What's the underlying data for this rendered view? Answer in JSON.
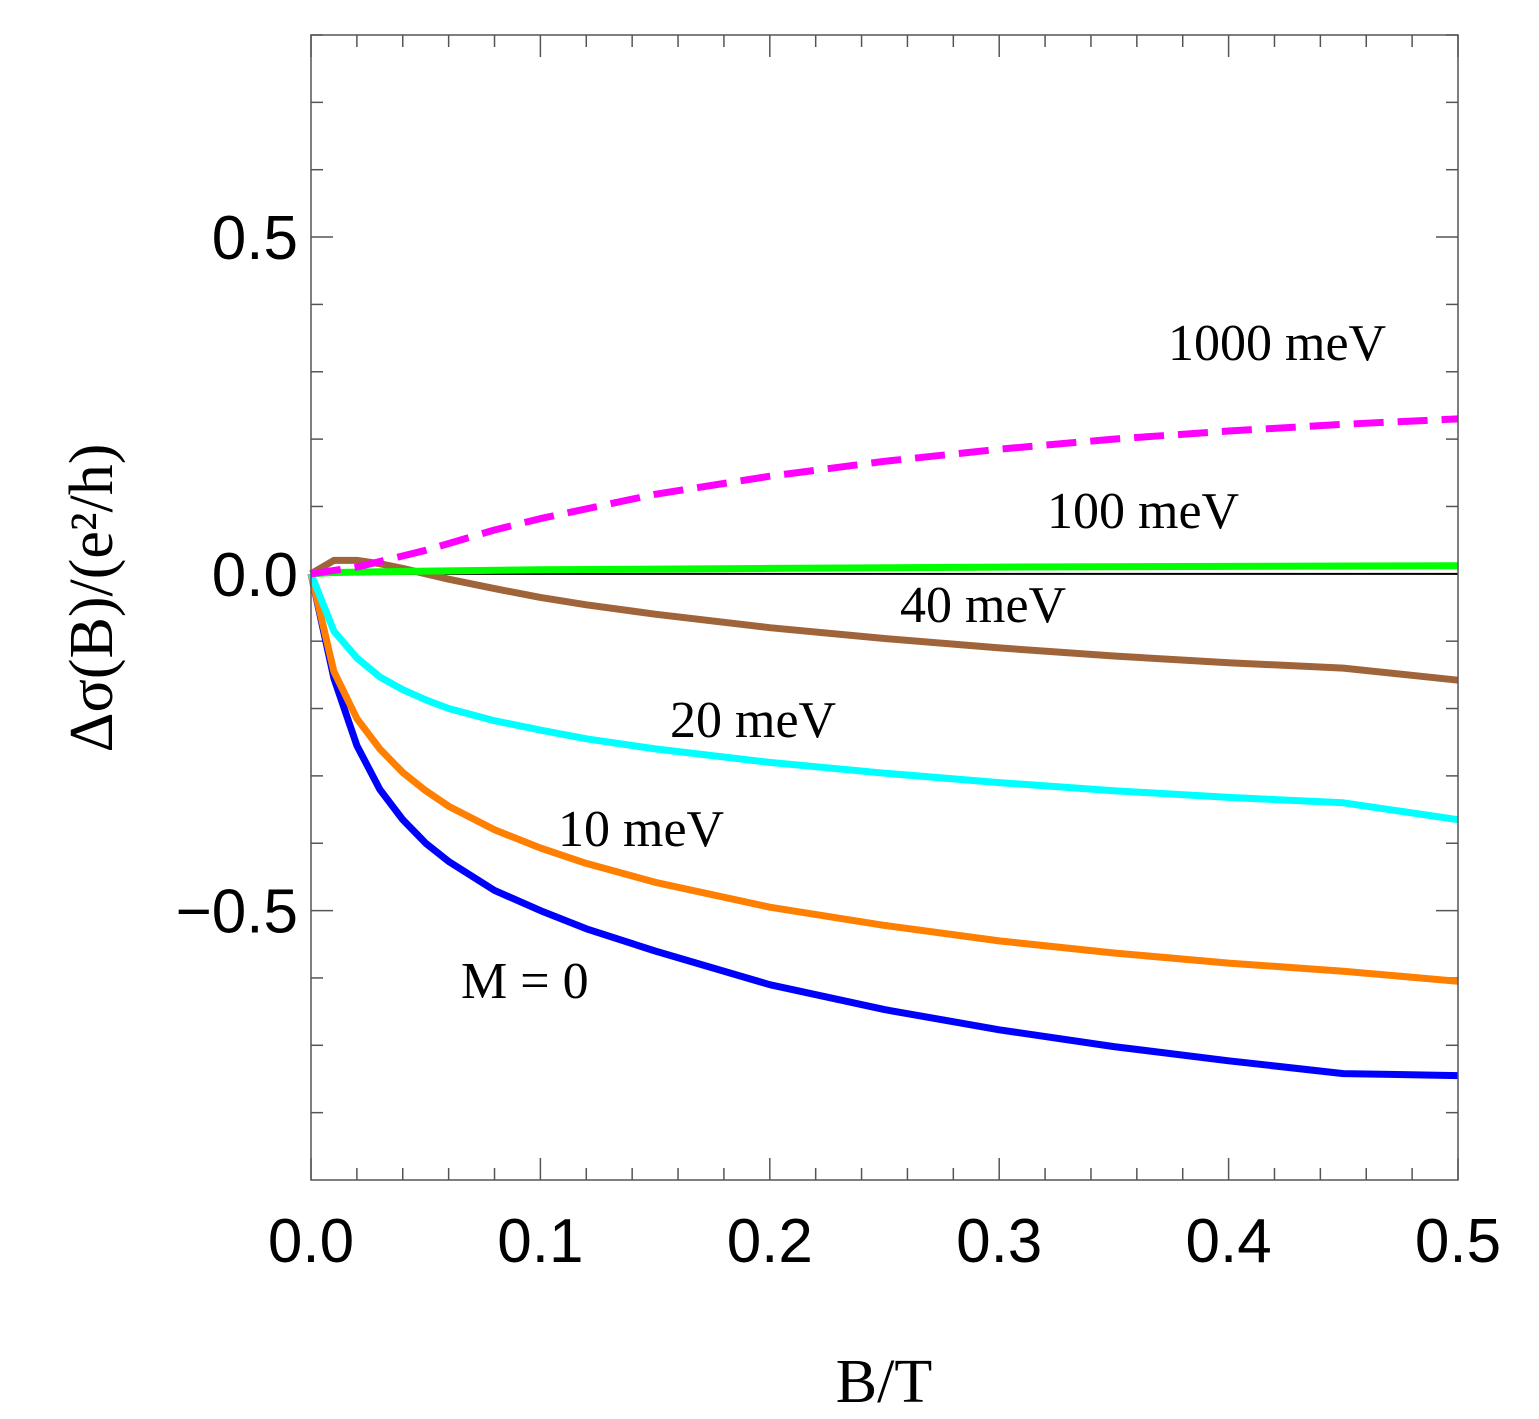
{
  "chart_data": {
    "type": "line",
    "title": "",
    "xlabel": "B/T",
    "ylabel": "Δσ(B)/(e²/h)",
    "xlim": [
      0,
      0.5
    ],
    "ylim": [
      -0.9,
      0.8
    ],
    "x_ticks": [
      "0.0",
      "0.1",
      "0.2",
      "0.3",
      "0.4",
      "0.5"
    ],
    "y_ticks": [
      "-0.5",
      "0.0",
      "0.5"
    ],
    "x_tick_values": [
      0,
      0.1,
      0.2,
      0.3,
      0.4,
      0.5
    ],
    "y_tick_values": [
      -0.5,
      0,
      0.5
    ],
    "baseline": 0,
    "series": [
      {
        "name": "M = 0",
        "label": "M = 0",
        "color": "#0000ff",
        "dash": false,
        "x": [
          0,
          0.01,
          0.02,
          0.03,
          0.04,
          0.05,
          0.06,
          0.08,
          0.1,
          0.12,
          0.15,
          0.2,
          0.25,
          0.3,
          0.35,
          0.4,
          0.45,
          0.5
        ],
        "y": [
          0,
          -0.155,
          -0.255,
          -0.32,
          -0.365,
          -0.4,
          -0.427,
          -0.47,
          -0.5,
          -0.527,
          -0.56,
          -0.61,
          -0.647,
          -0.677,
          -0.702,
          -0.723,
          -0.742,
          -0.745
        ]
      },
      {
        "name": "10 meV",
        "label": "10 meV",
        "color": "#ff7f00",
        "dash": false,
        "x": [
          0,
          0.01,
          0.02,
          0.03,
          0.04,
          0.05,
          0.06,
          0.08,
          0.1,
          0.12,
          0.15,
          0.2,
          0.25,
          0.3,
          0.35,
          0.4,
          0.45,
          0.5
        ],
        "y": [
          0,
          -0.145,
          -0.215,
          -0.26,
          -0.295,
          -0.322,
          -0.345,
          -0.38,
          -0.407,
          -0.43,
          -0.458,
          -0.495,
          -0.522,
          -0.545,
          -0.563,
          -0.578,
          -0.59,
          -0.605
        ]
      },
      {
        "name": "20 meV",
        "label": "20 meV",
        "color": "#00ffff",
        "dash": false,
        "x": [
          0,
          0.01,
          0.02,
          0.03,
          0.04,
          0.05,
          0.06,
          0.08,
          0.1,
          0.12,
          0.15,
          0.2,
          0.25,
          0.3,
          0.35,
          0.4,
          0.45,
          0.5
        ],
        "y": [
          0,
          -0.085,
          -0.125,
          -0.153,
          -0.172,
          -0.187,
          -0.2,
          -0.218,
          -0.232,
          -0.245,
          -0.26,
          -0.28,
          -0.296,
          -0.31,
          -0.322,
          -0.332,
          -0.34,
          -0.365
        ]
      },
      {
        "name": "40 meV",
        "label": "40 meV",
        "color": "#a0643a",
        "dash": false,
        "x": [
          0,
          0.01,
          0.02,
          0.03,
          0.04,
          0.05,
          0.06,
          0.08,
          0.1,
          0.12,
          0.15,
          0.2,
          0.25,
          0.3,
          0.35,
          0.4,
          0.45,
          0.5
        ],
        "y": [
          0,
          0.02,
          0.02,
          0.015,
          0.008,
          0,
          -0.008,
          -0.022,
          -0.035,
          -0.046,
          -0.06,
          -0.08,
          -0.096,
          -0.11,
          -0.122,
          -0.132,
          -0.14,
          -0.158
        ]
      },
      {
        "name": "100 meV",
        "label": "100 meV",
        "color": "#00ff00",
        "dash": false,
        "x": [
          0,
          0.01,
          0.05,
          0.1,
          0.2,
          0.3,
          0.4,
          0.5
        ],
        "y": [
          0,
          0.002,
          0.004,
          0.006,
          0.008,
          0.01,
          0.011,
          0.012
        ]
      },
      {
        "name": "1000 meV",
        "label": "1000 meV",
        "color": "#ff00ff",
        "dash": true,
        "x": [
          0,
          0.02,
          0.05,
          0.08,
          0.1,
          0.15,
          0.2,
          0.25,
          0.3,
          0.35,
          0.4,
          0.45,
          0.5
        ],
        "y": [
          0,
          0.01,
          0.035,
          0.065,
          0.082,
          0.118,
          0.145,
          0.167,
          0.185,
          0.2,
          0.212,
          0.222,
          0.23
        ]
      }
    ]
  }
}
